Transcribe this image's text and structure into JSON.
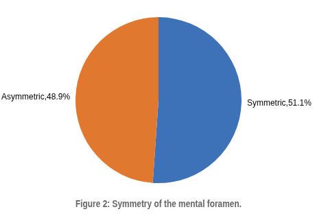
{
  "chart_data": {
    "type": "pie",
    "title": "Figure 2: Symmetry of the mental foramen.",
    "categories": [
      "Symmetric",
      "Asymmetric"
    ],
    "values": [
      51.1,
      48.9
    ],
    "colors": [
      "#3d72b8",
      "#e07830"
    ],
    "data_labels": true,
    "value_labels": [
      "Symmetric,51.1%",
      "Asymmetric,48.9%"
    ]
  }
}
